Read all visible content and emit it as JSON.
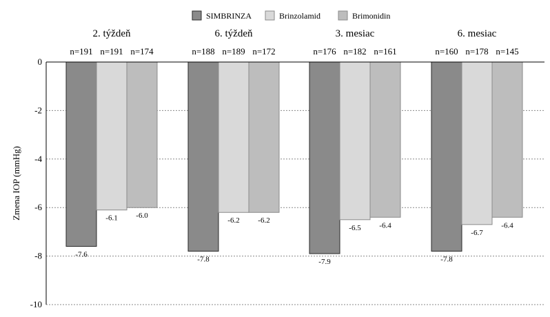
{
  "chart_data": {
    "type": "bar",
    "legend": {
      "placement": "top",
      "entries": [
        {
          "name": "SIMBRINZA",
          "color": "#8a8a8a"
        },
        {
          "name": "Brinzolamid",
          "color": "#d9d9d9"
        },
        {
          "name": "Brimonidin",
          "color": "#bdbdbd"
        }
      ]
    },
    "ylabel": "Zmena IOP (mmHg)",
    "ylim": [
      -10,
      0
    ],
    "yticks": [
      0,
      -2,
      -4,
      -6,
      -8,
      -10
    ],
    "grid": true,
    "groups": [
      {
        "label": "2. týždeň",
        "bars": [
          {
            "series": "SIMBRINZA",
            "n": "n=191",
            "value": -7.6,
            "value_label": "-7.6"
          },
          {
            "series": "Brinzolamid",
            "n": "n=191",
            "value": -6.1,
            "value_label": "-6.1"
          },
          {
            "series": "Brimonidin",
            "n": "n=174",
            "value": -6.0,
            "value_label": "-6.0"
          }
        ]
      },
      {
        "label": "6. týždeň",
        "bars": [
          {
            "series": "SIMBRINZA",
            "n": "n=188",
            "value": -7.8,
            "value_label": "-7.8"
          },
          {
            "series": "Brinzolamid",
            "n": "n=189",
            "value": -6.2,
            "value_label": "-6.2"
          },
          {
            "series": "Brimonidin",
            "n": "n=172",
            "value": -6.2,
            "value_label": "-6.2"
          }
        ]
      },
      {
        "label": "3. mesiac",
        "bars": [
          {
            "series": "SIMBRINZA",
            "n": "n=176",
            "value": -7.9,
            "value_label": "-7.9"
          },
          {
            "series": "Brinzolamid",
            "n": "n=182",
            "value": -6.5,
            "value_label": "-6.5"
          },
          {
            "series": "Brimonidin",
            "n": "n=161",
            "value": -6.4,
            "value_label": "-6.4"
          }
        ]
      },
      {
        "label": "6. mesiac",
        "bars": [
          {
            "series": "SIMBRINZA",
            "n": "n=160",
            "value": -7.8,
            "value_label": "-7.8"
          },
          {
            "series": "Brinzolamid",
            "n": "n=178",
            "value": -6.7,
            "value_label": "-6.7"
          },
          {
            "series": "Brimonidin",
            "n": "n=145",
            "value": -6.4,
            "value_label": "-6.4"
          }
        ]
      }
    ]
  }
}
